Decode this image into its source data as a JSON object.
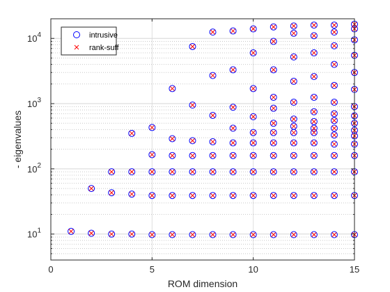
{
  "chart_data": {
    "type": "scatter",
    "xlabel": "ROM dimension",
    "ylabel": "- eigenvalues",
    "xlim": [
      0,
      15
    ],
    "ylim": [
      4,
      20000
    ],
    "yscale": "log",
    "grid": true,
    "legend_position": "top-left",
    "x_ticks": [
      "0",
      "5",
      "10",
      "15"
    ],
    "y_ticks": [
      {
        "base": "10",
        "exp": "1"
      },
      {
        "base": "10",
        "exp": "2"
      },
      {
        "base": "10",
        "exp": "3"
      },
      {
        "base": "10",
        "exp": "4"
      }
    ],
    "series": [
      {
        "name": "intrusive",
        "marker": "circle",
        "color": "#0000ff",
        "points": [
          [
            1,
            11
          ],
          [
            2,
            10.3
          ],
          [
            2,
            50
          ],
          [
            3,
            10
          ],
          [
            3,
            43
          ],
          [
            3,
            90
          ],
          [
            4,
            10
          ],
          [
            4,
            41
          ],
          [
            4,
            90
          ],
          [
            4,
            350
          ],
          [
            5,
            9.8
          ],
          [
            5,
            39
          ],
          [
            5,
            90
          ],
          [
            5,
            165
          ],
          [
            5,
            430
          ],
          [
            6,
            9.8
          ],
          [
            6,
            39
          ],
          [
            6,
            90
          ],
          [
            6,
            160
          ],
          [
            6,
            290
          ],
          [
            6,
            1700
          ],
          [
            7,
            9.8
          ],
          [
            7,
            39
          ],
          [
            7,
            90
          ],
          [
            7,
            160
          ],
          [
            7,
            270
          ],
          [
            7,
            950
          ],
          [
            7,
            7500
          ],
          [
            8,
            9.8
          ],
          [
            8,
            39
          ],
          [
            8,
            90
          ],
          [
            8,
            160
          ],
          [
            8,
            260
          ],
          [
            8,
            660
          ],
          [
            8,
            2700
          ],
          [
            8,
            12500
          ],
          [
            9,
            9.8
          ],
          [
            9,
            39
          ],
          [
            9,
            90
          ],
          [
            9,
            160
          ],
          [
            9,
            250
          ],
          [
            9,
            420
          ],
          [
            9,
            880
          ],
          [
            9,
            3300
          ],
          [
            9,
            13000
          ],
          [
            10,
            9.8
          ],
          [
            10,
            39
          ],
          [
            10,
            90
          ],
          [
            10,
            160
          ],
          [
            10,
            250
          ],
          [
            10,
            360
          ],
          [
            10,
            630
          ],
          [
            10,
            1700
          ],
          [
            10,
            6000
          ],
          [
            10,
            14000
          ],
          [
            11,
            9.8
          ],
          [
            11,
            39
          ],
          [
            11,
            90
          ],
          [
            11,
            160
          ],
          [
            11,
            250
          ],
          [
            11,
            360
          ],
          [
            11,
            500
          ],
          [
            11,
            850
          ],
          [
            11,
            1250
          ],
          [
            11,
            3300
          ],
          [
            11,
            9000
          ],
          [
            11,
            15000
          ],
          [
            12,
            9.8
          ],
          [
            12,
            39
          ],
          [
            12,
            90
          ],
          [
            12,
            160
          ],
          [
            12,
            250
          ],
          [
            12,
            360
          ],
          [
            12,
            450
          ],
          [
            12,
            580
          ],
          [
            12,
            1050
          ],
          [
            12,
            2200
          ],
          [
            12,
            5200
          ],
          [
            12,
            12000
          ],
          [
            12,
            15500
          ],
          [
            13,
            9.8
          ],
          [
            13,
            39
          ],
          [
            13,
            90
          ],
          [
            13,
            160
          ],
          [
            13,
            250
          ],
          [
            13,
            360
          ],
          [
            13,
            420
          ],
          [
            13,
            530
          ],
          [
            13,
            750
          ],
          [
            13,
            1250
          ],
          [
            13,
            2600
          ],
          [
            13,
            6000
          ],
          [
            13,
            11000
          ],
          [
            13,
            16000
          ],
          [
            14,
            9.8
          ],
          [
            14,
            39
          ],
          [
            14,
            90
          ],
          [
            14,
            160
          ],
          [
            14,
            240
          ],
          [
            14,
            330
          ],
          [
            14,
            420
          ],
          [
            14,
            550
          ],
          [
            14,
            700
          ],
          [
            14,
            1050
          ],
          [
            14,
            1900
          ],
          [
            14,
            4000
          ],
          [
            14,
            7700
          ],
          [
            14,
            12500
          ],
          [
            14,
            16000
          ],
          [
            15,
            9.8
          ],
          [
            15,
            39
          ],
          [
            15,
            90
          ],
          [
            15,
            160
          ],
          [
            15,
            240
          ],
          [
            15,
            320
          ],
          [
            15,
            390
          ],
          [
            15,
            500
          ],
          [
            15,
            650
          ],
          [
            15,
            900
          ],
          [
            15,
            1650
          ],
          [
            15,
            3000
          ],
          [
            15,
            5500
          ],
          [
            15,
            9500
          ],
          [
            15,
            14000
          ],
          [
            15,
            16500
          ]
        ]
      },
      {
        "name": "rank-suff",
        "marker": "x",
        "color": "#ff0000",
        "points": [
          [
            1,
            11
          ],
          [
            2,
            10.3
          ],
          [
            2,
            50
          ],
          [
            3,
            10
          ],
          [
            3,
            43
          ],
          [
            3,
            90
          ],
          [
            4,
            10
          ],
          [
            4,
            41
          ],
          [
            4,
            90
          ],
          [
            4,
            350
          ],
          [
            5,
            9.8
          ],
          [
            5,
            39
          ],
          [
            5,
            90
          ],
          [
            5,
            165
          ],
          [
            5,
            430
          ],
          [
            6,
            9.8
          ],
          [
            6,
            39
          ],
          [
            6,
            90
          ],
          [
            6,
            160
          ],
          [
            6,
            290
          ],
          [
            6,
            1700
          ],
          [
            7,
            9.8
          ],
          [
            7,
            39
          ],
          [
            7,
            90
          ],
          [
            7,
            160
          ],
          [
            7,
            270
          ],
          [
            7,
            950
          ],
          [
            7,
            7500
          ],
          [
            8,
            9.8
          ],
          [
            8,
            39
          ],
          [
            8,
            90
          ],
          [
            8,
            160
          ],
          [
            8,
            260
          ],
          [
            8,
            660
          ],
          [
            8,
            2700
          ],
          [
            8,
            12500
          ],
          [
            9,
            9.8
          ],
          [
            9,
            39
          ],
          [
            9,
            90
          ],
          [
            9,
            160
          ],
          [
            9,
            250
          ],
          [
            9,
            420
          ],
          [
            9,
            880
          ],
          [
            9,
            3300
          ],
          [
            9,
            13000
          ],
          [
            10,
            9.8
          ],
          [
            10,
            39
          ],
          [
            10,
            90
          ],
          [
            10,
            160
          ],
          [
            10,
            250
          ],
          [
            10,
            360
          ],
          [
            10,
            630
          ],
          [
            10,
            1700
          ],
          [
            10,
            6000
          ],
          [
            10,
            14000
          ],
          [
            11,
            9.8
          ],
          [
            11,
            39
          ],
          [
            11,
            90
          ],
          [
            11,
            160
          ],
          [
            11,
            250
          ],
          [
            11,
            360
          ],
          [
            11,
            500
          ],
          [
            11,
            850
          ],
          [
            11,
            1250
          ],
          [
            11,
            3300
          ],
          [
            11,
            9000
          ],
          [
            11,
            15000
          ],
          [
            12,
            9.8
          ],
          [
            12,
            39
          ],
          [
            12,
            90
          ],
          [
            12,
            160
          ],
          [
            12,
            250
          ],
          [
            12,
            360
          ],
          [
            12,
            450
          ],
          [
            12,
            580
          ],
          [
            12,
            1050
          ],
          [
            12,
            2200
          ],
          [
            12,
            5200
          ],
          [
            12,
            12000
          ],
          [
            12,
            15500
          ],
          [
            13,
            9.8
          ],
          [
            13,
            39
          ],
          [
            13,
            90
          ],
          [
            13,
            160
          ],
          [
            13,
            250
          ],
          [
            13,
            360
          ],
          [
            13,
            420
          ],
          [
            13,
            530
          ],
          [
            13,
            750
          ],
          [
            13,
            1250
          ],
          [
            13,
            2600
          ],
          [
            13,
            6000
          ],
          [
            13,
            11000
          ],
          [
            13,
            16000
          ],
          [
            14,
            9.8
          ],
          [
            14,
            39
          ],
          [
            14,
            90
          ],
          [
            14,
            160
          ],
          [
            14,
            240
          ],
          [
            14,
            330
          ],
          [
            14,
            420
          ],
          [
            14,
            550
          ],
          [
            14,
            700
          ],
          [
            14,
            1050
          ],
          [
            14,
            1900
          ],
          [
            14,
            4000
          ],
          [
            14,
            7700
          ],
          [
            14,
            12500
          ],
          [
            14,
            16000
          ],
          [
            15,
            9.8
          ],
          [
            15,
            39
          ],
          [
            15,
            90
          ],
          [
            15,
            160
          ],
          [
            15,
            240
          ],
          [
            15,
            320
          ],
          [
            15,
            390
          ],
          [
            15,
            500
          ],
          [
            15,
            650
          ],
          [
            15,
            900
          ],
          [
            15,
            1650
          ],
          [
            15,
            3000
          ],
          [
            15,
            5500
          ],
          [
            15,
            9500
          ],
          [
            15,
            14000
          ],
          [
            15,
            16500
          ]
        ]
      }
    ]
  }
}
